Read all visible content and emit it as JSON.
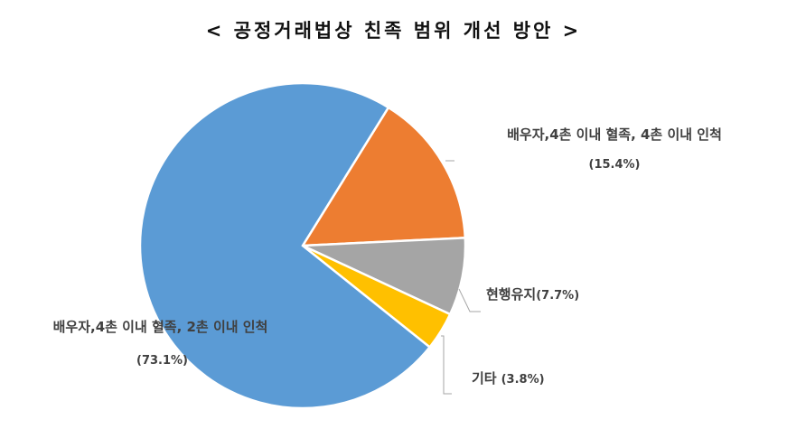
{
  "chart_data": {
    "type": "pie",
    "title": "< 공정거래법상 친족 범위 개선 방안 >",
    "categories": [
      "배우자,4촌 이내 혈족, 4촌 이내 인척",
      "현행유지",
      "기타",
      "배우자,4촌 이내 혈족, 2촌 이내 인척"
    ],
    "values": [
      15.4,
      7.7,
      3.8,
      73.1
    ],
    "value_labels": [
      "(15.4%)",
      "(7.7%)",
      "(3.8%)",
      "(73.1%)"
    ],
    "colors": [
      "#ED7D31",
      "#A5A5A5",
      "#FFC000",
      "#5B9BD5"
    ]
  }
}
